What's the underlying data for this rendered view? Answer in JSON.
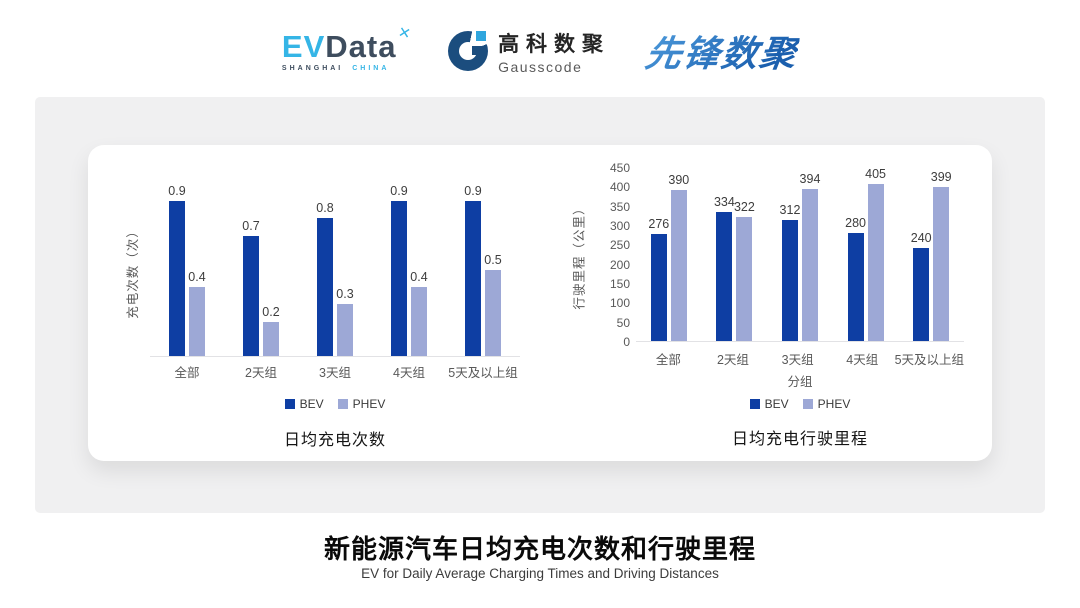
{
  "header": {
    "evdata": {
      "part1": "EV",
      "part2": "Data",
      "sub1": "SHANGHAI",
      "sub2": "CHINA"
    },
    "gausscode": {
      "cn": "高科数聚",
      "en": "Gausscode"
    },
    "pioneer": "先锋数聚"
  },
  "footer": {
    "title": "新能源汽车日均充电次数和行驶里程",
    "subtitle": "EV for Daily Average Charging Times and Driving Distances"
  },
  "colors": {
    "bev": "#0e3ea3",
    "phev": "#9da8d6",
    "evdata_light_blue": "#35b5e6",
    "evdata_dark": "#3e4d5e",
    "gauss_navy": "#1b4d7e",
    "gauss_light_blue": "#2fa6de",
    "pioneer_blue": "#2d7ac6",
    "panel_gray": "#f0f0f1"
  },
  "chart_data": [
    {
      "type": "bar",
      "title": "日均充电次数",
      "ylabel": "充电次数（次）",
      "xlabel": "",
      "categories": [
        "全部",
        "2天组",
        "3天组",
        "4天组",
        "5天及以上组"
      ],
      "series": [
        {
          "name": "BEV",
          "color": "#0e3ea3",
          "values": [
            0.9,
            0.7,
            0.8,
            0.9,
            0.9
          ]
        },
        {
          "name": "PHEV",
          "color": "#9da8d6",
          "values": [
            0.4,
            0.2,
            0.3,
            0.4,
            0.5
          ]
        }
      ],
      "ylim": [
        0,
        1
      ],
      "yticks": [],
      "grid": false,
      "value_labels": true,
      "legend": [
        "BEV",
        "PHEV"
      ],
      "legend_position": "bottom"
    },
    {
      "type": "bar",
      "title": "日均充电行驶里程",
      "ylabel": "行驶里程（公里）",
      "xlabel": "分组",
      "categories": [
        "全部",
        "2天组",
        "3天组",
        "4天组",
        "5天及以上组"
      ],
      "series": [
        {
          "name": "BEV",
          "color": "#0e3ea3",
          "values": [
            276,
            334,
            312,
            280,
            240
          ]
        },
        {
          "name": "PHEV",
          "color": "#9da8d6",
          "values": [
            390,
            322,
            394,
            405,
            399
          ]
        }
      ],
      "ylim": [
        0,
        450
      ],
      "yticks": [
        0,
        50,
        100,
        150,
        200,
        250,
        300,
        350,
        400,
        450
      ],
      "grid": false,
      "value_labels": true,
      "legend": [
        "BEV",
        "PHEV"
      ],
      "legend_position": "bottom"
    }
  ]
}
